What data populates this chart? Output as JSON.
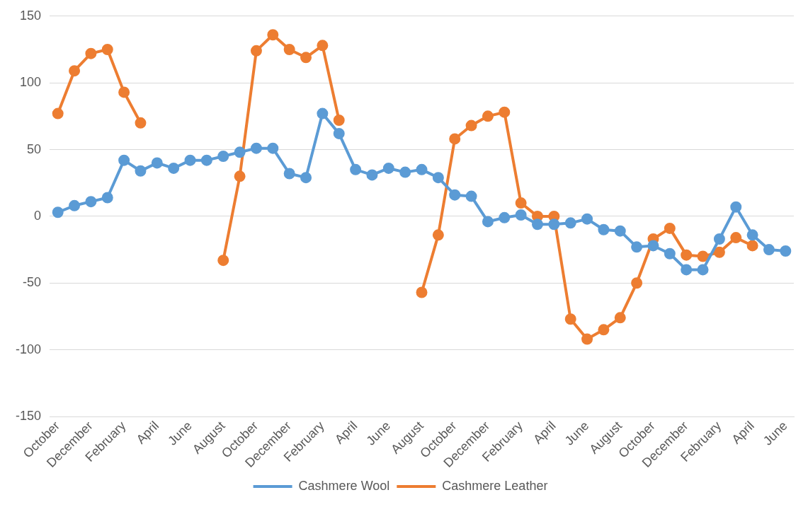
{
  "chart_data": {
    "type": "line",
    "categories": [
      "October",
      null,
      "December",
      null,
      "February",
      null,
      "April",
      null,
      "June",
      null,
      "August",
      null,
      "October",
      null,
      "December",
      null,
      "February",
      null,
      "April",
      null,
      "June",
      null,
      "August",
      null,
      "October",
      null,
      "December",
      null,
      "February",
      null,
      "April",
      null,
      "June",
      null,
      "August",
      null,
      "October",
      null,
      "December",
      null,
      "February",
      null,
      "April",
      null,
      "June"
    ],
    "series": [
      {
        "name": "Cashmere Wool",
        "color": "#5b9bd5",
        "values": [
          3,
          8,
          11,
          14,
          42,
          34,
          40,
          36,
          42,
          42,
          45,
          48,
          51,
          51,
          32,
          29,
          77,
          62,
          35,
          31,
          36,
          33,
          35,
          29,
          16,
          15,
          -4,
          -1,
          1,
          -6,
          -6,
          -5,
          -2,
          -10,
          -11,
          -23,
          -22,
          -28,
          -40,
          -40,
          -17,
          7,
          -14,
          -25,
          -26
        ]
      },
      {
        "name": "Cashmere Leather",
        "color": "#ed7d31",
        "values": [
          77,
          109,
          122,
          125,
          93,
          70,
          null,
          null,
          null,
          null,
          -33,
          30,
          124,
          136,
          125,
          119,
          128,
          72,
          null,
          null,
          null,
          null,
          -57,
          -14,
          58,
          68,
          75,
          78,
          10,
          0,
          0,
          -77,
          -92,
          -85,
          -76,
          -50,
          -17,
          -9,
          -29,
          -30,
          -27,
          -16,
          -22,
          null,
          null
        ]
      }
    ],
    "ylim": [
      -150,
      150
    ],
    "yticks": [
      -150,
      -100,
      -50,
      0,
      50,
      100,
      150
    ],
    "grid": "y",
    "legend": "bottom",
    "marker": "circle",
    "line_style": "solid"
  }
}
